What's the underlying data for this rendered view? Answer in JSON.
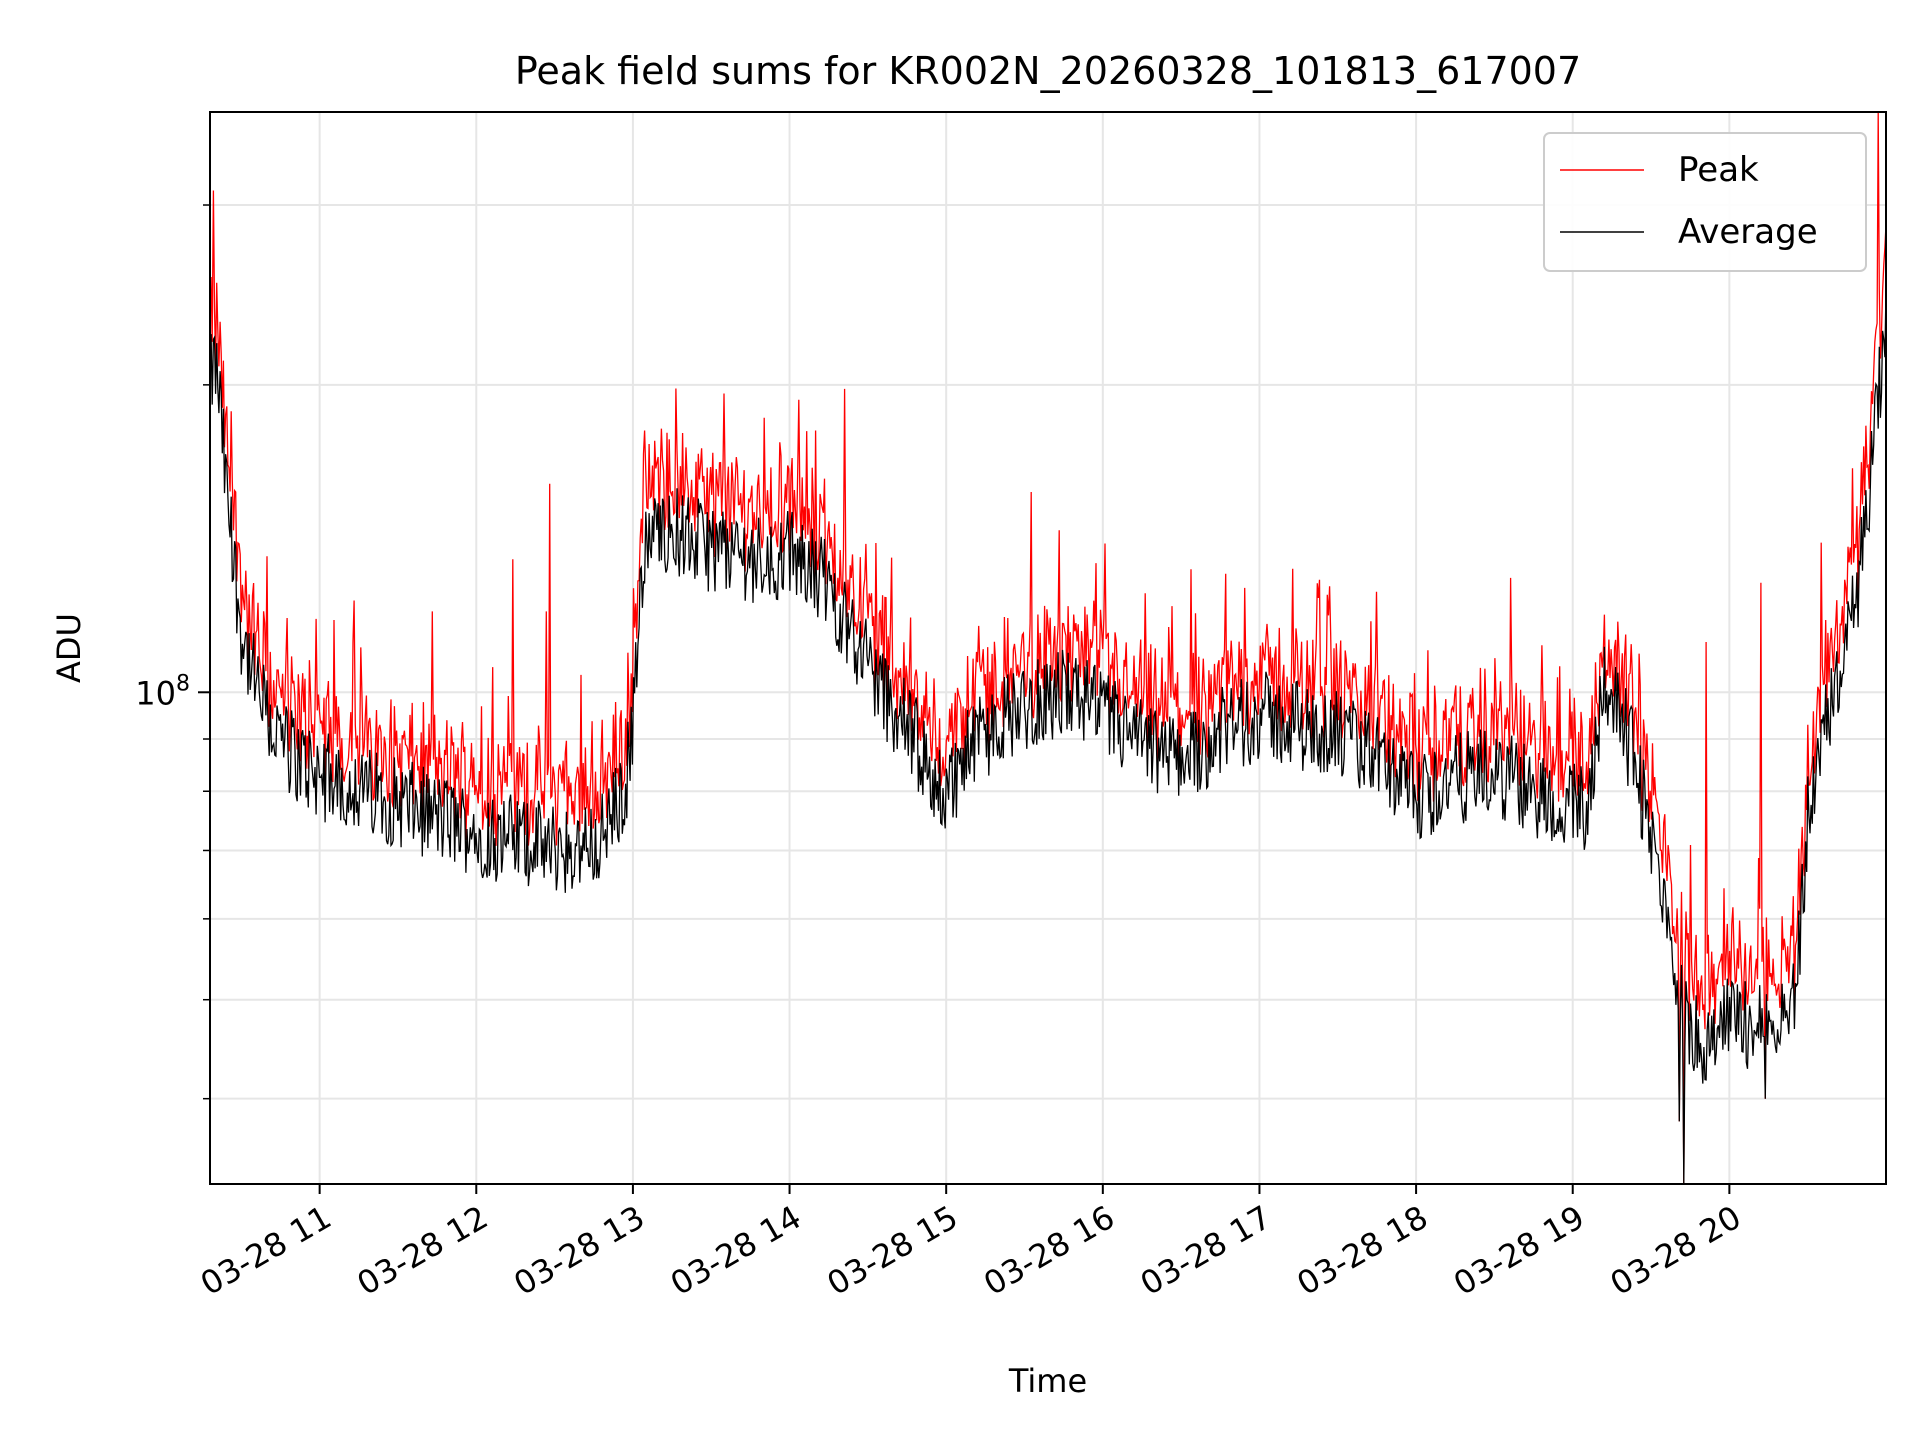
{
  "chart_data": {
    "type": "line",
    "title": "Peak field sums for KR002N_20260328_101813_617007",
    "xlabel": "Time",
    "ylabel": "ADU",
    "yscale": "log",
    "ylim": [
      33000000,
      370000000
    ],
    "xlim_hours": [
      10.3,
      21.0
    ],
    "grid": true,
    "legend_position": "top-right",
    "x_ticks": [
      {
        "hour": 11,
        "label": "03-28 11"
      },
      {
        "hour": 12,
        "label": "03-28 12"
      },
      {
        "hour": 13,
        "label": "03-28 13"
      },
      {
        "hour": 14,
        "label": "03-28 14"
      },
      {
        "hour": 15,
        "label": "03-28 15"
      },
      {
        "hour": 16,
        "label": "03-28 16"
      },
      {
        "hour": 17,
        "label": "03-28 17"
      },
      {
        "hour": 18,
        "label": "03-28 18"
      },
      {
        "hour": 19,
        "label": "03-28 19"
      },
      {
        "hour": 20,
        "label": "03-28 20"
      }
    ],
    "y_major_ticks": [
      {
        "value": 100000000,
        "base": "10",
        "exp": "8"
      }
    ],
    "y_minor_ticks": [
      40000000,
      50000000,
      60000000,
      70000000,
      80000000,
      90000000,
      200000000,
      300000000
    ],
    "series": [
      {
        "name": "Average",
        "color": "#000000",
        "x": [
          10.3,
          10.33,
          10.36,
          10.4,
          10.45,
          10.5,
          10.6,
          10.7,
          10.8,
          10.9,
          11.0,
          11.2,
          11.4,
          11.6,
          11.8,
          12.0,
          12.2,
          12.4,
          12.6,
          12.8,
          12.95,
          13.0,
          13.05,
          13.1,
          13.2,
          13.3,
          13.4,
          13.6,
          13.8,
          14.0,
          14.2,
          14.4,
          14.6,
          14.8,
          14.9,
          15.0,
          15.2,
          15.4,
          15.6,
          15.8,
          16.0,
          16.2,
          16.4,
          16.6,
          16.8,
          17.0,
          17.2,
          17.4,
          17.6,
          17.8,
          18.0,
          18.2,
          18.4,
          18.6,
          18.8,
          19.0,
          19.1,
          19.2,
          19.3,
          19.4,
          19.5,
          19.6,
          19.7,
          19.8,
          19.9,
          20.0,
          20.2,
          20.4,
          20.45,
          20.5,
          20.6,
          20.7,
          20.8,
          20.9,
          21.0
        ],
        "values": [
          200000000,
          210000000,
          195000000,
          160000000,
          135000000,
          115000000,
          100000000,
          92000000,
          88000000,
          85000000,
          83000000,
          81000000,
          79000000,
          77000000,
          75000000,
          73000000,
          72000000,
          71000000,
          70000000,
          72000000,
          80000000,
          95000000,
          130000000,
          140000000,
          145000000,
          143000000,
          140000000,
          138000000,
          135000000,
          136000000,
          130000000,
          115000000,
          100000000,
          90000000,
          82000000,
          80000000,
          90000000,
          95000000,
          98000000,
          100000000,
          95000000,
          90000000,
          86000000,
          88000000,
          92000000,
          95000000,
          93000000,
          92000000,
          89000000,
          85000000,
          78000000,
          82000000,
          83000000,
          82000000,
          79000000,
          77000000,
          78000000,
          104000000,
          95000000,
          85000000,
          72000000,
          60000000,
          50000000,
          45000000,
          47000000,
          48000000,
          47000000,
          49000000,
          58000000,
          75000000,
          90000000,
          105000000,
          120000000,
          160000000,
          230000000
        ]
      },
      {
        "name": "Peak",
        "color": "#ff0000",
        "x": [
          10.3,
          10.33,
          10.36,
          10.4,
          10.45,
          10.5,
          10.6,
          10.7,
          10.8,
          10.9,
          11.0,
          11.2,
          11.4,
          11.6,
          11.8,
          12.0,
          12.2,
          12.4,
          12.6,
          12.8,
          12.95,
          13.0,
          13.05,
          13.1,
          13.2,
          13.3,
          13.4,
          13.6,
          13.8,
          14.0,
          14.2,
          14.4,
          14.6,
          14.8,
          14.9,
          15.0,
          15.2,
          15.4,
          15.6,
          15.8,
          16.0,
          16.2,
          16.4,
          16.6,
          16.8,
          17.0,
          17.2,
          17.4,
          17.6,
          17.8,
          18.0,
          18.2,
          18.4,
          18.6,
          18.8,
          19.0,
          19.1,
          19.2,
          19.3,
          19.4,
          19.5,
          19.6,
          19.7,
          19.8,
          19.9,
          20.0,
          20.2,
          20.4,
          20.45,
          20.5,
          20.6,
          20.7,
          20.8,
          20.9,
          21.0
        ],
        "values": [
          215000000,
          220000000,
          210000000,
          170000000,
          145000000,
          122000000,
          106000000,
          97000000,
          93000000,
          90000000,
          88000000,
          86000000,
          84000000,
          82000000,
          80000000,
          79000000,
          78000000,
          77000000,
          76000000,
          78000000,
          86000000,
          101000000,
          138000000,
          150000000,
          155000000,
          152000000,
          150000000,
          147000000,
          144000000,
          145000000,
          138000000,
          122000000,
          106000000,
          95000000,
          87000000,
          85000000,
          95000000,
          100000000,
          104000000,
          106000000,
          101000000,
          95000000,
          91000000,
          93000000,
          97000000,
          100000000,
          98000000,
          97000000,
          94000000,
          90000000,
          83000000,
          87000000,
          88000000,
          87000000,
          84000000,
          82000000,
          83000000,
          108000000,
          100000000,
          90000000,
          77000000,
          64000000,
          54000000,
          49000000,
          51000000,
          52000000,
          51000000,
          53000000,
          62000000,
          80000000,
          96000000,
          112000000,
          128000000,
          175000000,
          250000000
        ]
      }
    ],
    "peak_spikes": [
      {
        "hour": 10.32,
        "value": 310000000
      },
      {
        "hour": 10.98,
        "value": 118000000
      },
      {
        "hour": 11.22,
        "value": 123000000
      },
      {
        "hour": 11.72,
        "value": 120000000
      },
      {
        "hour": 12.23,
        "value": 135000000
      },
      {
        "hour": 12.45,
        "value": 120000000
      },
      {
        "hour": 12.47,
        "value": 160000000
      },
      {
        "hour": 13.35,
        "value": 158000000
      },
      {
        "hour": 14.55,
        "value": 140000000
      },
      {
        "hour": 16.27,
        "value": 125000000
      },
      {
        "hour": 17.45,
        "value": 127000000
      },
      {
        "hour": 18.5,
        "value": 108000000
      },
      {
        "hour": 19.85,
        "value": 112000000
      },
      {
        "hour": 20.2,
        "value": 128000000
      },
      {
        "hour": 20.95,
        "value": 370000000
      }
    ],
    "dips": [
      {
        "hour": 19.71,
        "value": 33000000
      },
      {
        "hour": 19.68,
        "value": 38000000
      },
      {
        "hour": 20.23,
        "value": 40000000
      }
    ]
  }
}
